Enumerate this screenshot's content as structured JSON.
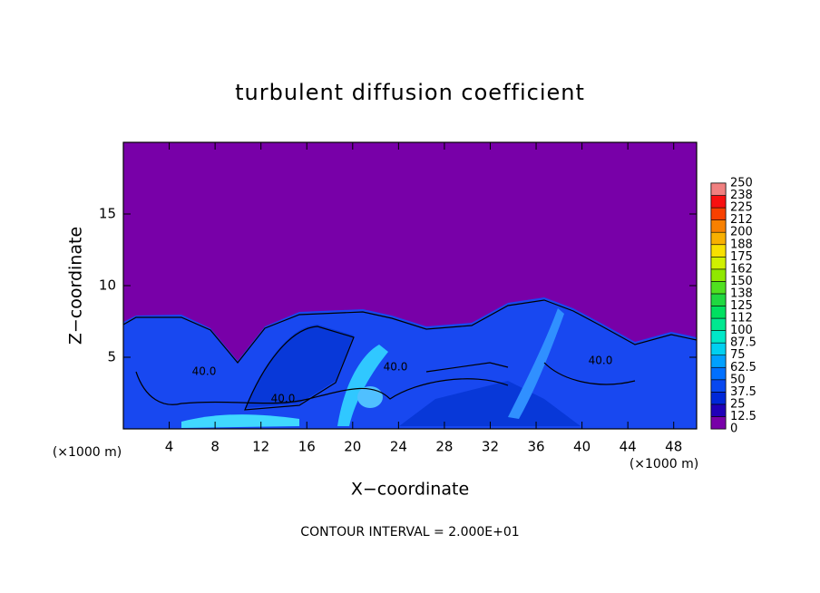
{
  "chart_data": {
    "type": "contour",
    "title": "turbulent diffusion coefficient",
    "x_label": "X−coordinate",
    "y_label": "Z−coordinate",
    "x_unit": "(×1000 m)",
    "y_unit": "(×1000 m)",
    "footnote": "CONTOUR INTERVAL = 2.000E+01",
    "xlim": [
      0,
      50
    ],
    "ylim": [
      0,
      20
    ],
    "xticks": [
      4,
      8,
      12,
      16,
      20,
      24,
      28,
      32,
      36,
      40,
      44,
      48
    ],
    "yticks": [
      5,
      10,
      15
    ],
    "contour_labels": [
      "40.0",
      "40.0",
      "40.0",
      "40.0"
    ],
    "colorbar": {
      "levels": [
        0,
        12.5,
        25,
        37.5,
        50,
        62.5,
        75,
        87.5,
        100,
        {
          "value": 112.5,
          "label": "112"
        },
        125,
        {
          "value": 137.5,
          "label": "138"
        },
        150,
        {
          "value": 162.5,
          "label": "162"
        },
        175,
        {
          "value": 187.5,
          "label": "188"
        },
        200,
        {
          "value": 212.5,
          "label": "212"
        },
        225,
        {
          "value": 237.5,
          "label": "238"
        },
        250
      ],
      "colors": [
        "#7800a8",
        "#2000b8",
        "#0028d8",
        "#0848f0",
        "#0070ff",
        "#00a0ff",
        "#00d0f0",
        "#00e8c8",
        "#00e890",
        "#00e060",
        "#20d840",
        "#50e020",
        "#90e800",
        "#d0f000",
        "#f8e000",
        "#f8b000",
        "#f88000",
        "#f84000",
        "#f81010",
        "#f08080"
      ]
    }
  }
}
